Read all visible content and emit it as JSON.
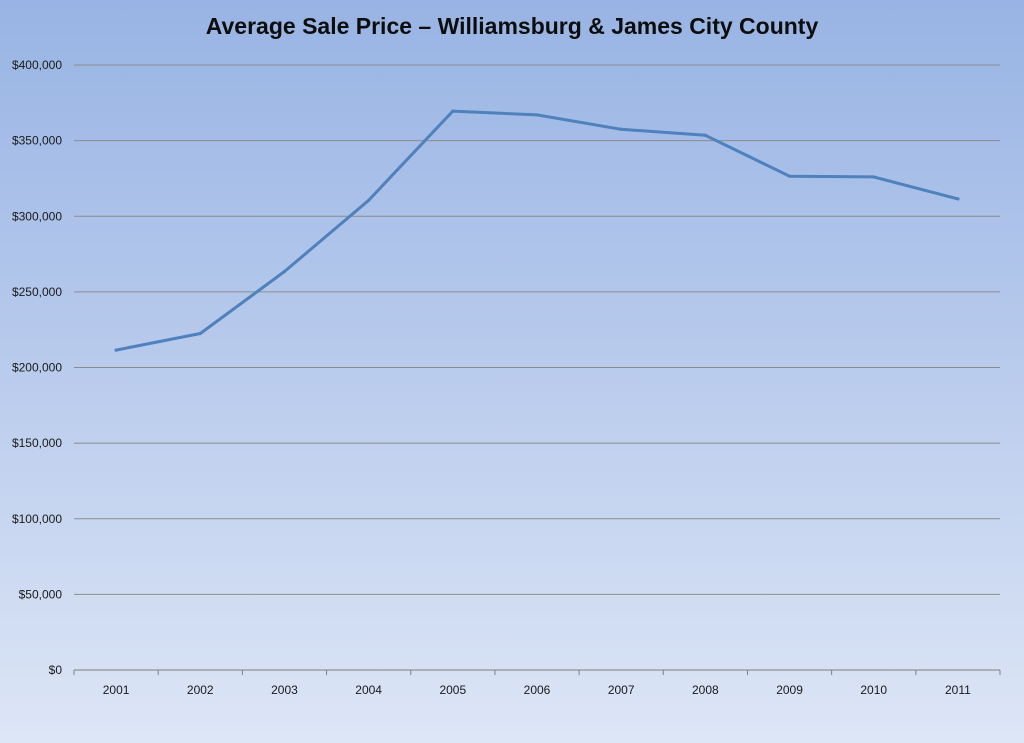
{
  "chart_data": {
    "type": "line",
    "title": "Average Sale Price – Williamsburg & James City County",
    "xlabel": "",
    "ylabel": "",
    "categories": [
      "2001",
      "2002",
      "2003",
      "2004",
      "2005",
      "2006",
      "2007",
      "2008",
      "2009",
      "2010",
      "2011"
    ],
    "series": [
      {
        "values": [
          211500,
          222500,
          263500,
          310500,
          369500,
          367000,
          357500,
          353500,
          326500,
          326000,
          311500
        ],
        "color": "#4f81bd"
      }
    ],
    "ylim": [
      0,
      400000
    ],
    "y_ticks": [
      0,
      50000,
      100000,
      150000,
      200000,
      250000,
      300000,
      350000,
      400000
    ],
    "y_tick_labels": [
      "$0",
      "$50,000",
      "$100,000",
      "$150,000",
      "$200,000",
      "$250,000",
      "$300,000",
      "$350,000",
      "$400,000"
    ],
    "grid": true,
    "grid_color": "#8c8c8c",
    "legend": "none"
  }
}
